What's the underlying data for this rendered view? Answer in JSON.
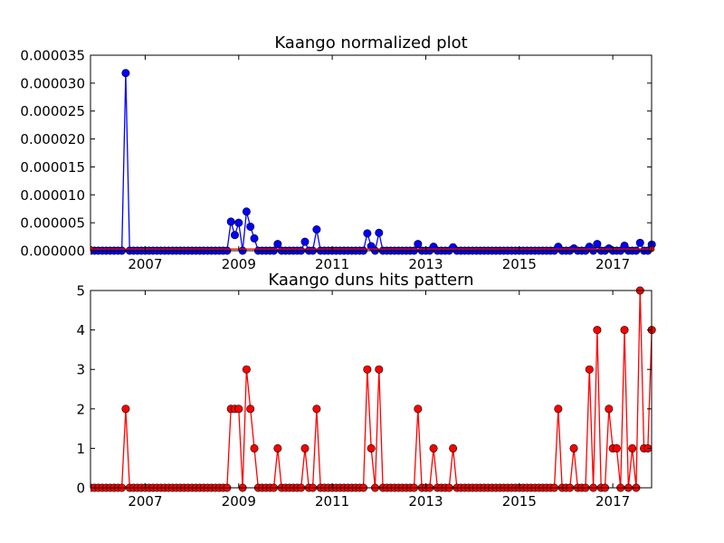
{
  "chart_data": [
    {
      "type": "line",
      "title": "Kaango normalized plot",
      "xlabel": "",
      "ylabel": "",
      "xlim": [
        2005.83,
        2017.83
      ],
      "ylim": [
        0,
        3.5e-05
      ],
      "grid": false,
      "x_ticks": [
        2007,
        2009,
        2011,
        2013,
        2015,
        2017
      ],
      "x_tick_labels": [
        "2007",
        "2009",
        "2011",
        "2013",
        "2015",
        "2017"
      ],
      "y_ticks": [
        0,
        5e-06,
        1e-05,
        1.5e-05,
        2e-05,
        2.5e-05,
        3e-05,
        3.5e-05
      ],
      "y_tick_labels": [
        "0.000000",
        "0.000005",
        "0.000010",
        "0.000015",
        "0.000020",
        "0.000025",
        "0.000030",
        "0.000035"
      ],
      "series": [
        {
          "color": "#0000ff",
          "marker_color": "#0000ff",
          "points": [
            [
              2006.58,
              3.18e-05
            ],
            [
              2008.83,
              5.2e-06
            ],
            [
              2008.92,
              2.8e-06
            ],
            [
              2009.0,
              5e-06
            ],
            [
              2009.17,
              7e-06
            ],
            [
              2009.25,
              4.3e-06
            ],
            [
              2009.33,
              2.2e-06
            ],
            [
              2009.83,
              1.2e-06
            ],
            [
              2010.42,
              1.6e-06
            ],
            [
              2010.67,
              3.8e-06
            ],
            [
              2011.75,
              3.1e-06
            ],
            [
              2011.83,
              8e-07
            ],
            [
              2012.0,
              3.2e-06
            ],
            [
              2012.83,
              1.2e-06
            ],
            [
              2013.17,
              7e-07
            ],
            [
              2013.58,
              6e-07
            ],
            [
              2015.83,
              7e-07
            ],
            [
              2016.17,
              4e-07
            ],
            [
              2016.5,
              7e-07
            ],
            [
              2016.67,
              1.2e-06
            ],
            [
              2016.92,
              4e-07
            ],
            [
              2017.25,
              9e-07
            ],
            [
              2017.58,
              1.4e-06
            ],
            [
              2017.83,
              1.1e-06
            ]
          ]
        },
        {
          "color": "#ff0000",
          "marker_color": "#ff0000",
          "points": [
            [
              2005.83,
              3e-07
            ],
            [
              2017.83,
              3e-07
            ]
          ]
        }
      ]
    },
    {
      "type": "line",
      "title": "Kaango duns hits pattern",
      "xlabel": "",
      "ylabel": "",
      "xlim": [
        2005.83,
        2017.83
      ],
      "ylim": [
        0,
        5
      ],
      "grid": false,
      "x_ticks": [
        2007,
        2009,
        2011,
        2013,
        2015,
        2017
      ],
      "x_tick_labels": [
        "2007",
        "2009",
        "2011",
        "2013",
        "2015",
        "2017"
      ],
      "y_ticks": [
        0,
        1,
        2,
        3,
        4,
        5
      ],
      "y_tick_labels": [
        "0",
        "1",
        "2",
        "3",
        "4",
        "5"
      ],
      "series": [
        {
          "color": "#ff0000",
          "marker_color": "#ff0000",
          "points": [
            [
              2006.58,
              2
            ],
            [
              2008.83,
              2
            ],
            [
              2008.92,
              2
            ],
            [
              2009.0,
              2
            ],
            [
              2009.17,
              3
            ],
            [
              2009.25,
              2
            ],
            [
              2009.33,
              1
            ],
            [
              2009.83,
              1
            ],
            [
              2010.42,
              1
            ],
            [
              2010.67,
              2
            ],
            [
              2011.75,
              3
            ],
            [
              2011.83,
              1
            ],
            [
              2012.0,
              3
            ],
            [
              2012.83,
              2
            ],
            [
              2013.17,
              1
            ],
            [
              2013.58,
              1
            ],
            [
              2015.83,
              2
            ],
            [
              2016.17,
              1
            ],
            [
              2016.5,
              3
            ],
            [
              2016.67,
              4
            ],
            [
              2016.92,
              2
            ],
            [
              2017.0,
              1
            ],
            [
              2017.08,
              1
            ],
            [
              2017.25,
              4
            ],
            [
              2017.42,
              1
            ],
            [
              2017.58,
              5
            ],
            [
              2017.67,
              1
            ],
            [
              2017.75,
              1
            ],
            [
              2017.83,
              4
            ]
          ]
        }
      ]
    }
  ]
}
